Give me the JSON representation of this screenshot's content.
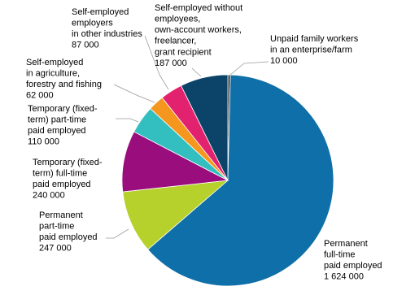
{
  "chart_data": {
    "type": "pie",
    "categories": [
      [
        "Unpaid family workers",
        "in an enterprise/farm"
      ],
      [
        "Permanent",
        "full-time",
        "paid employed"
      ],
      [
        "Permanent",
        "part-time",
        "paid employed"
      ],
      [
        "Temporary (fixed-",
        "term) full-time",
        "paid employed"
      ],
      [
        "Temporary (fixed-",
        "term) part-time",
        "paid employed"
      ],
      [
        "Self-employed",
        "in agriculture,",
        "forestry and fishing"
      ],
      [
        "Self-employed",
        "employers",
        "in other industries"
      ],
      [
        "Self-employed without",
        "employees,",
        "own-account workers,",
        "freelancer,",
        "grant recipient"
      ]
    ],
    "values": [
      10000,
      1624000,
      247000,
      240000,
      110000,
      62000,
      87000,
      187000
    ],
    "value_labels": [
      "10 000",
      "1 624 000",
      "247 000",
      "240 000",
      "110 000",
      "62 000",
      "87 000",
      "187 000"
    ],
    "colors": [
      "#3a3a3a",
      "#0f6fa8",
      "#b6d12b",
      "#9a0d7d",
      "#33bfbf",
      "#f5961e",
      "#e2216f",
      "#0b4468"
    ]
  }
}
